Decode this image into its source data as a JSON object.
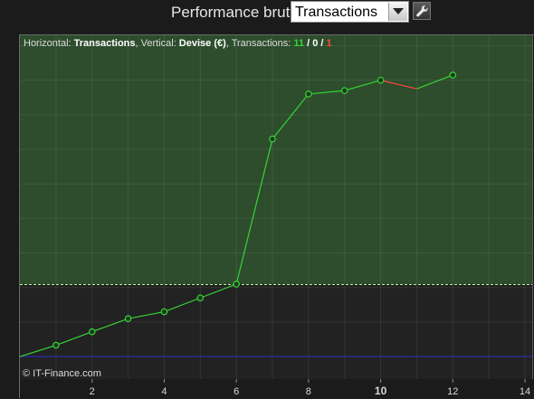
{
  "toolbar": {
    "label": "Performance brute",
    "mode_value": "Transactions",
    "dropdown_icon": "triangle-down-icon",
    "settings_icon": "wrench-icon"
  },
  "info": {
    "horizontal_prefix": "Horizontal: ",
    "horizontal_value": "Transactions",
    "vertical_prefix": ", Vertical: ",
    "vertical_value": "Devise (€)",
    "transactions_prefix": ", Transactions: ",
    "wins": "11",
    "sep1": " / ",
    "flat": "0",
    "sep2": " / ",
    "losses": "1"
  },
  "copyright": "© IT-Finance.com",
  "colors": {
    "background": "#1b1b1b",
    "profit_zone": "#2d4d2d",
    "equity_up": "#35d335",
    "equity_down": "#ff4a3a",
    "zero_line": "#2a2ac8",
    "grid": "#3a3a3a",
    "label": "#d8d8d8"
  },
  "chart_data": {
    "type": "line",
    "x": [
      0,
      1,
      2,
      3,
      4,
      5,
      6,
      7,
      8,
      9,
      10,
      11,
      12
    ],
    "y": [
      0,
      3.3,
      7.2,
      11,
      13,
      17,
      21,
      63,
      76,
      77,
      80,
      77.5,
      81.5
    ],
    "markers": [
      1,
      2,
      3,
      4,
      5,
      6,
      7,
      8,
      9,
      10,
      12
    ],
    "losing_segment": [
      10,
      11
    ],
    "xlim": [
      0,
      14.2
    ],
    "ylim": [
      -6.5,
      93
    ],
    "xticks": [
      2,
      4,
      6,
      8,
      10,
      12,
      14
    ],
    "highlight_tick": 10,
    "breakeven_y": 21,
    "zero_y": 0,
    "grid": true
  }
}
